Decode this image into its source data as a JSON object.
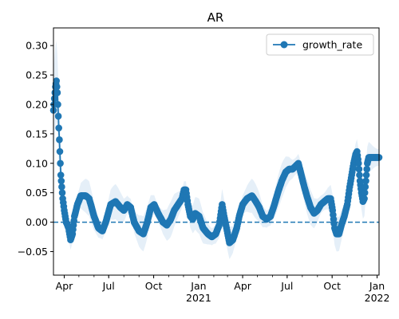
{
  "chart_data": {
    "type": "line",
    "title": "AR",
    "xlabel": "",
    "ylabel": "",
    "x_start": "2020-03-10",
    "x_end": "2022-01-05",
    "ylim": [
      -0.09,
      0.33
    ],
    "y_ticks": [
      -0.05,
      0.0,
      0.05,
      0.1,
      0.15,
      0.2,
      0.25,
      0.3
    ],
    "y_tick_labels": [
      "−0.05",
      "0.00",
      "0.05",
      "0.10",
      "0.15",
      "0.20",
      "0.25",
      "0.30"
    ],
    "x_ticks": [
      {
        "date": "2020-04-01",
        "label": "Apr",
        "sublabel": ""
      },
      {
        "date": "2020-07-01",
        "label": "Jul",
        "sublabel": ""
      },
      {
        "date": "2020-10-01",
        "label": "Oct",
        "sublabel": ""
      },
      {
        "date": "2021-01-01",
        "label": "Jan",
        "sublabel": "2021"
      },
      {
        "date": "2021-04-01",
        "label": "Apr",
        "sublabel": ""
      },
      {
        "date": "2021-07-01",
        "label": "Jul",
        "sublabel": ""
      },
      {
        "date": "2021-10-01",
        "label": "Oct",
        "sublabel": ""
      },
      {
        "date": "2022-01-01",
        "label": "Jan",
        "sublabel": "2022"
      }
    ],
    "reference_line": {
      "y": 0.0,
      "style": "dashed"
    },
    "legend": {
      "position": "top-right",
      "entries": [
        "growth_rate"
      ]
    },
    "colors": {
      "line": "#1f77b4",
      "band": "#dce9f6",
      "reference": "#1f77b4"
    },
    "grid": false,
    "series": [
      {
        "name": "growth_rate",
        "band_halfwidth": 0.022,
        "points": [
          [
            "2020-03-10",
            0.19
          ],
          [
            "2020-03-12",
            0.21
          ],
          [
            "2020-03-14",
            0.23
          ],
          [
            "2020-03-16",
            0.24
          ],
          [
            "2020-03-18",
            0.22
          ],
          [
            "2020-03-19",
            0.2
          ],
          [
            "2020-03-20",
            0.18
          ],
          [
            "2020-03-21",
            0.16
          ],
          [
            "2020-03-22",
            0.14
          ],
          [
            "2020-03-23",
            0.12
          ],
          [
            "2020-03-24",
            0.1
          ],
          [
            "2020-03-25",
            0.08
          ],
          [
            "2020-03-27",
            0.06
          ],
          [
            "2020-03-29",
            0.04
          ],
          [
            "2020-04-01",
            0.02
          ],
          [
            "2020-04-05",
            0.0
          ],
          [
            "2020-04-10",
            -0.01
          ],
          [
            "2020-04-14",
            -0.03
          ],
          [
            "2020-04-18",
            -0.02
          ],
          [
            "2020-04-22",
            0.01
          ],
          [
            "2020-04-28",
            0.03
          ],
          [
            "2020-05-05",
            0.045
          ],
          [
            "2020-05-15",
            0.045
          ],
          [
            "2020-05-22",
            0.04
          ],
          [
            "2020-06-01",
            0.01
          ],
          [
            "2020-06-10",
            -0.01
          ],
          [
            "2020-06-18",
            -0.015
          ],
          [
            "2020-06-25",
            0.0
          ],
          [
            "2020-07-05",
            0.03
          ],
          [
            "2020-07-15",
            0.035
          ],
          [
            "2020-07-25",
            0.025
          ],
          [
            "2020-08-01",
            0.02
          ],
          [
            "2020-08-08",
            0.03
          ],
          [
            "2020-08-15",
            0.025
          ],
          [
            "2020-08-22",
            0.0
          ],
          [
            "2020-09-01",
            -0.015
          ],
          [
            "2020-09-10",
            -0.02
          ],
          [
            "2020-09-18",
            0.0
          ],
          [
            "2020-09-25",
            0.025
          ],
          [
            "2020-10-02",
            0.03
          ],
          [
            "2020-10-10",
            0.015
          ],
          [
            "2020-10-20",
            0.0
          ],
          [
            "2020-10-28",
            -0.005
          ],
          [
            "2020-11-05",
            0.005
          ],
          [
            "2020-11-12",
            0.02
          ],
          [
            "2020-11-20",
            0.03
          ],
          [
            "2020-11-28",
            0.04
          ],
          [
            "2020-12-02",
            0.055
          ],
          [
            "2020-12-06",
            0.055
          ],
          [
            "2020-12-10",
            0.03
          ],
          [
            "2020-12-15",
            0.01
          ],
          [
            "2020-12-20",
            0.005
          ],
          [
            "2020-12-25",
            0.015
          ],
          [
            "2021-01-02",
            0.01
          ],
          [
            "2021-01-10",
            -0.01
          ],
          [
            "2021-01-20",
            -0.02
          ],
          [
            "2021-01-28",
            -0.025
          ],
          [
            "2021-02-05",
            -0.02
          ],
          [
            "2021-02-12",
            -0.005
          ],
          [
            "2021-02-18",
            0.03
          ],
          [
            "2021-02-22",
            0.01
          ],
          [
            "2021-02-27",
            -0.01
          ],
          [
            "2021-03-05",
            -0.035
          ],
          [
            "2021-03-12",
            -0.03
          ],
          [
            "2021-03-20",
            -0.01
          ],
          [
            "2021-03-25",
            0.01
          ],
          [
            "2021-04-01",
            0.03
          ],
          [
            "2021-04-10",
            0.04
          ],
          [
            "2021-04-20",
            0.045
          ],
          [
            "2021-04-28",
            0.035
          ],
          [
            "2021-05-05",
            0.025
          ],
          [
            "2021-05-12",
            0.01
          ],
          [
            "2021-05-20",
            0.005
          ],
          [
            "2021-05-28",
            0.01
          ],
          [
            "2021-06-05",
            0.03
          ],
          [
            "2021-06-12",
            0.05
          ],
          [
            "2021-06-20",
            0.07
          ],
          [
            "2021-06-28",
            0.085
          ],
          [
            "2021-07-05",
            0.09
          ],
          [
            "2021-07-12",
            0.09
          ],
          [
            "2021-07-18",
            0.095
          ],
          [
            "2021-07-24",
            0.1
          ],
          [
            "2021-07-30",
            0.08
          ],
          [
            "2021-08-05",
            0.06
          ],
          [
            "2021-08-12",
            0.04
          ],
          [
            "2021-08-18",
            0.025
          ],
          [
            "2021-08-25",
            0.015
          ],
          [
            "2021-09-01",
            0.02
          ],
          [
            "2021-09-08",
            0.03
          ],
          [
            "2021-09-15",
            0.035
          ],
          [
            "2021-09-22",
            0.04
          ],
          [
            "2021-09-28",
            0.04
          ],
          [
            "2021-10-02",
            0.02
          ],
          [
            "2021-10-06",
            -0.01
          ],
          [
            "2021-10-10",
            -0.02
          ],
          [
            "2021-10-15",
            -0.02
          ],
          [
            "2021-10-20",
            -0.005
          ],
          [
            "2021-10-26",
            0.01
          ],
          [
            "2021-11-01",
            0.03
          ],
          [
            "2021-11-06",
            0.06
          ],
          [
            "2021-11-10",
            0.08
          ],
          [
            "2021-11-14",
            0.1
          ],
          [
            "2021-11-18",
            0.115
          ],
          [
            "2021-11-21",
            0.12
          ],
          [
            "2021-11-24",
            0.1
          ],
          [
            "2021-11-27",
            0.07
          ],
          [
            "2021-11-30",
            0.05
          ],
          [
            "2021-12-03",
            0.035
          ],
          [
            "2021-12-06",
            0.04
          ],
          [
            "2021-12-09",
            0.07
          ],
          [
            "2021-12-12",
            0.1
          ],
          [
            "2021-12-15",
            0.11
          ],
          [
            "2021-12-20",
            0.11
          ],
          [
            "2021-12-26",
            0.11
          ],
          [
            "2022-01-01",
            0.11
          ],
          [
            "2022-01-05",
            0.11
          ]
        ]
      }
    ]
  }
}
